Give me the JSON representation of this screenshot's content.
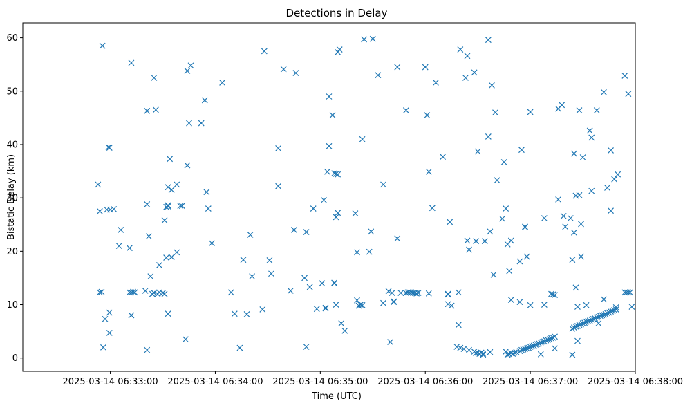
{
  "chart_data": {
    "type": "scatter",
    "title": "Detections in Delay",
    "xlabel": "Time (UTC)",
    "ylabel": "Bistatic Delay (km)",
    "x_unit": "seconds after 2025-03-14 06:33:00",
    "xlim": [
      -50,
      300
    ],
    "ylim": [
      -2.5,
      62.8
    ],
    "grid": false,
    "marker": "x",
    "color": "#1f77b4",
    "x_ticks": [
      {
        "value": 0,
        "label": "2025-03-14 06:33:00"
      },
      {
        "value": 60,
        "label": "2025-03-14 06:34:00"
      },
      {
        "value": 120,
        "label": "2025-03-14 06:35:00"
      },
      {
        "value": 180,
        "label": "2025-03-14 06:36:00"
      },
      {
        "value": 240,
        "label": "2025-03-14 06:37:00"
      },
      {
        "value": 300,
        "label": "2025-03-14 06:38:00"
      }
    ],
    "y_ticks": [
      {
        "value": 0,
        "label": "0"
      },
      {
        "value": 10,
        "label": "10"
      },
      {
        "value": 20,
        "label": "20"
      },
      {
        "value": 30,
        "label": "30"
      },
      {
        "value": 40,
        "label": "40"
      },
      {
        "value": 50,
        "label": "50"
      },
      {
        "value": 60,
        "label": "60"
      }
    ],
    "points": [
      [
        -7,
        32.5
      ],
      [
        -6,
        27.5
      ],
      [
        -6,
        12.3
      ],
      [
        -5,
        12.4
      ],
      [
        -4.5,
        58.5
      ],
      [
        -4,
        2.0
      ],
      [
        -3,
        7.3
      ],
      [
        -2,
        27.8
      ],
      [
        -1,
        39.5
      ],
      [
        -0.5,
        39.4
      ],
      [
        -0.5,
        4.7
      ],
      [
        -0.5,
        8.5
      ],
      [
        0,
        27.8
      ],
      [
        2,
        27.9
      ],
      [
        5,
        21.0
      ],
      [
        6,
        24.0
      ],
      [
        11,
        20.6
      ],
      [
        11,
        12.3
      ],
      [
        12,
        55.3
      ],
      [
        12,
        8.0
      ],
      [
        12,
        12.3
      ],
      [
        13,
        12.4
      ],
      [
        14,
        12.3
      ],
      [
        20,
        12.6
      ],
      [
        21,
        1.5
      ],
      [
        21,
        28.8
      ],
      [
        21,
        46.3
      ],
      [
        22,
        22.8
      ],
      [
        23,
        15.3
      ],
      [
        24,
        12.0
      ],
      [
        25,
        52.5
      ],
      [
        25,
        12.2
      ],
      [
        26,
        46.5
      ],
      [
        27,
        12.0
      ],
      [
        28,
        12.3
      ],
      [
        28,
        17.4
      ],
      [
        30,
        12.2
      ],
      [
        31,
        12.0
      ],
      [
        31,
        25.8
      ],
      [
        32,
        28.3
      ],
      [
        32,
        18.8
      ],
      [
        33,
        28.4
      ],
      [
        33,
        28.6
      ],
      [
        33,
        32.0
      ],
      [
        33,
        8.3
      ],
      [
        34,
        37.3
      ],
      [
        35,
        18.9
      ],
      [
        35,
        31.5
      ],
      [
        38,
        32.5
      ],
      [
        38,
        19.8
      ],
      [
        40,
        28.5
      ],
      [
        41,
        28.5
      ],
      [
        43,
        3.5
      ],
      [
        44,
        53.8
      ],
      [
        44,
        36.1
      ],
      [
        45,
        44.0
      ],
      [
        46,
        54.8
      ],
      [
        52,
        44.0
      ],
      [
        54,
        48.3
      ],
      [
        55,
        31.1
      ],
      [
        56,
        28.0
      ],
      [
        58,
        21.5
      ],
      [
        64,
        51.6
      ],
      [
        69,
        12.3
      ],
      [
        71,
        8.3
      ],
      [
        74,
        1.9
      ],
      [
        76,
        18.4
      ],
      [
        78,
        8.2
      ],
      [
        80,
        23.1
      ],
      [
        81,
        15.3
      ],
      [
        87,
        9.1
      ],
      [
        88,
        57.5
      ],
      [
        91,
        18.3
      ],
      [
        92,
        15.8
      ],
      [
        96,
        32.2
      ],
      [
        96,
        39.3
      ],
      [
        99,
        54.1
      ],
      [
        103,
        12.6
      ],
      [
        105,
        24.0
      ],
      [
        106,
        53.4
      ],
      [
        111,
        15.0
      ],
      [
        112,
        2.1
      ],
      [
        112,
        23.6
      ],
      [
        114,
        13.3
      ],
      [
        116,
        28.0
      ],
      [
        118,
        9.2
      ],
      [
        121,
        14.0
      ],
      [
        122,
        29.6
      ],
      [
        123,
        9.4
      ],
      [
        123,
        9.3
      ],
      [
        124,
        34.9
      ],
      [
        125,
        39.7
      ],
      [
        125,
        49.0
      ],
      [
        127,
        45.5
      ],
      [
        128,
        14.0
      ],
      [
        128,
        14.1
      ],
      [
        128,
        34.6
      ],
      [
        129,
        34.5
      ],
      [
        129,
        26.4
      ],
      [
        129,
        10.0
      ],
      [
        130,
        34.4
      ],
      [
        130,
        57.3
      ],
      [
        130,
        27.2
      ],
      [
        131,
        57.8
      ],
      [
        132,
        6.5
      ],
      [
        134,
        5.1
      ],
      [
        140,
        27.1
      ],
      [
        141,
        19.8
      ],
      [
        141,
        10.8
      ],
      [
        142,
        9.8
      ],
      [
        143,
        10.0
      ],
      [
        144,
        9.9
      ],
      [
        144,
        41.0
      ],
      [
        145,
        59.7
      ],
      [
        148,
        19.9
      ],
      [
        149,
        23.7
      ],
      [
        150,
        59.8
      ],
      [
        153,
        53.0
      ],
      [
        156,
        32.5
      ],
      [
        156,
        10.3
      ],
      [
        159,
        12.5
      ],
      [
        160,
        3.0
      ],
      [
        161,
        12.2
      ],
      [
        162,
        10.6
      ],
      [
        162,
        10.5
      ],
      [
        164,
        22.4
      ],
      [
        164,
        54.5
      ],
      [
        166,
        12.2
      ],
      [
        169,
        46.4
      ],
      [
        169,
        12.2
      ],
      [
        170,
        12.3
      ],
      [
        171,
        12.3
      ],
      [
        172,
        12.3
      ],
      [
        173,
        12.2
      ],
      [
        174,
        12.2
      ],
      [
        175,
        12.1
      ],
      [
        176,
        12.2
      ],
      [
        180,
        54.5
      ],
      [
        181,
        45.5
      ],
      [
        182,
        34.9
      ],
      [
        182,
        12.1
      ],
      [
        184,
        28.1
      ],
      [
        186,
        51.6
      ],
      [
        190,
        37.7
      ],
      [
        193,
        10.1
      ],
      [
        193,
        12.0
      ],
      [
        193,
        11.9
      ],
      [
        194,
        25.5
      ],
      [
        195,
        9.8
      ],
      [
        198,
        2.1
      ],
      [
        199,
        12.3
      ],
      [
        199,
        6.2
      ],
      [
        200,
        1.9
      ],
      [
        200,
        57.8
      ],
      [
        202,
        1.7
      ],
      [
        203,
        52.5
      ],
      [
        204,
        56.6
      ],
      [
        204,
        22.0
      ],
      [
        205,
        20.3
      ],
      [
        205,
        1.5
      ],
      [
        208,
        53.5
      ],
      [
        208,
        1.2
      ],
      [
        209,
        21.9
      ],
      [
        209,
        0.9
      ],
      [
        210,
        1.0
      ],
      [
        210,
        38.7
      ],
      [
        211,
        0.8
      ],
      [
        212,
        1.0
      ],
      [
        213,
        0.6
      ],
      [
        213,
        0.8
      ],
      [
        214,
        21.9
      ],
      [
        216,
        59.6
      ],
      [
        216,
        41.5
      ],
      [
        217,
        23.7
      ],
      [
        217,
        1.1
      ],
      [
        218,
        51.1
      ],
      [
        219,
        15.6
      ],
      [
        220,
        46.0
      ],
      [
        221,
        33.3
      ],
      [
        224,
        26.1
      ],
      [
        225,
        36.7
      ],
      [
        226,
        28.0
      ],
      [
        227,
        21.3
      ],
      [
        228,
        16.3
      ],
      [
        229,
        22.0
      ],
      [
        229,
        10.9
      ],
      [
        226,
        1.2
      ],
      [
        227,
        0.6
      ],
      [
        228,
        0.7
      ],
      [
        229,
        0.9
      ],
      [
        230,
        0.8
      ],
      [
        231,
        1.0
      ],
      [
        232,
        1.1
      ],
      [
        234,
        1.3
      ],
      [
        235,
        1.5
      ],
      [
        236,
        1.6
      ],
      [
        237,
        1.7
      ],
      [
        238,
        1.8
      ],
      [
        239,
        1.9
      ],
      [
        240,
        2.1
      ],
      [
        241,
        2.2
      ],
      [
        242,
        2.3
      ],
      [
        243,
        2.5
      ],
      [
        244,
        2.6
      ],
      [
        245,
        2.7
      ],
      [
        246,
        2.9
      ],
      [
        247,
        3.0
      ],
      [
        248,
        3.1
      ],
      [
        249,
        3.3
      ],
      [
        250,
        3.4
      ],
      [
        251,
        3.5
      ],
      [
        252,
        3.7
      ],
      [
        253,
        3.8
      ],
      [
        254,
        4.0
      ],
      [
        234,
        18.1
      ],
      [
        234,
        10.5
      ],
      [
        235,
        39.0
      ],
      [
        237,
        24.6
      ],
      [
        237,
        24.5
      ],
      [
        238,
        19.0
      ],
      [
        240,
        46.1
      ],
      [
        240,
        9.9
      ],
      [
        246,
        0.7
      ],
      [
        248,
        10.0
      ],
      [
        248,
        26.2
      ],
      [
        252,
        12.0
      ],
      [
        253,
        11.9
      ],
      [
        254,
        11.8
      ],
      [
        254,
        1.8
      ],
      [
        256,
        29.7
      ],
      [
        256,
        46.7
      ],
      [
        258,
        47.4
      ],
      [
        259,
        26.6
      ],
      [
        260,
        24.6
      ],
      [
        263,
        26.2
      ],
      [
        264,
        18.4
      ],
      [
        264,
        0.6
      ],
      [
        265,
        23.5
      ],
      [
        265,
        38.3
      ],
      [
        266,
        30.4
      ],
      [
        266,
        13.2
      ],
      [
        267,
        9.6
      ],
      [
        267,
        3.2
      ],
      [
        268,
        46.4
      ],
      [
        268,
        30.5
      ],
      [
        269,
        25.1
      ],
      [
        269,
        19.0
      ],
      [
        270,
        37.6
      ],
      [
        272,
        9.9
      ],
      [
        274,
        42.6
      ],
      [
        275,
        41.3
      ],
      [
        275,
        31.3
      ],
      [
        278,
        46.4
      ],
      [
        279,
        6.5
      ],
      [
        282,
        49.8
      ],
      [
        282,
        11.0
      ],
      [
        284,
        31.9
      ],
      [
        286,
        38.9
      ],
      [
        286,
        27.6
      ],
      [
        288,
        33.5
      ],
      [
        289,
        9.5
      ],
      [
        290,
        34.4
      ],
      [
        294,
        52.9
      ],
      [
        294,
        12.3
      ],
      [
        295,
        12.3
      ],
      [
        296,
        12.3
      ],
      [
        296,
        49.5
      ],
      [
        297,
        12.3
      ],
      [
        298,
        9.6
      ],
      [
        264,
        5.5
      ],
      [
        265,
        5.7
      ],
      [
        266,
        5.9
      ],
      [
        267,
        6.0
      ],
      [
        268,
        6.2
      ],
      [
        269,
        6.3
      ],
      [
        270,
        6.5
      ],
      [
        271,
        6.6
      ],
      [
        272,
        6.8
      ],
      [
        273,
        6.9
      ],
      [
        274,
        7.0
      ],
      [
        275,
        7.2
      ],
      [
        276,
        7.3
      ],
      [
        277,
        7.4
      ],
      [
        278,
        7.6
      ],
      [
        279,
        7.7
      ],
      [
        280,
        7.9
      ],
      [
        281,
        8.0
      ],
      [
        282,
        8.1
      ],
      [
        283,
        8.2
      ],
      [
        284,
        8.4
      ],
      [
        285,
        8.5
      ],
      [
        286,
        8.7
      ],
      [
        287,
        8.8
      ],
      [
        288,
        9.0
      ],
      [
        289,
        9.1
      ]
    ]
  }
}
